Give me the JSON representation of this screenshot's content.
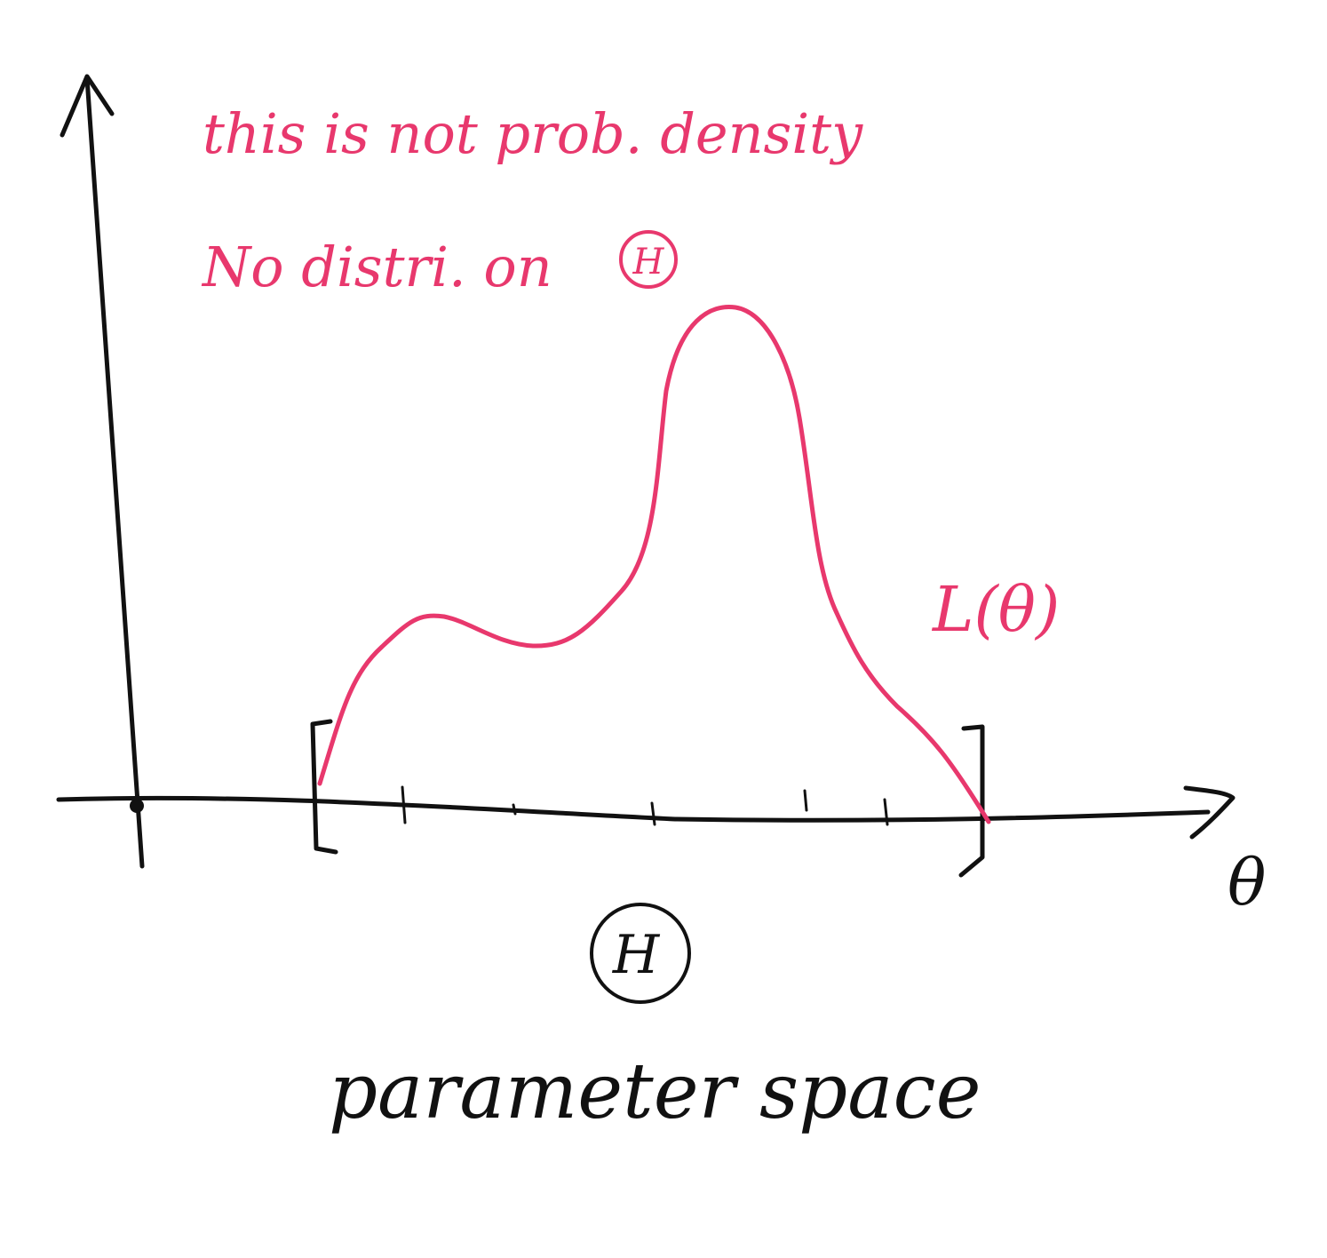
{
  "annotations": {
    "note_line1": "this is not prob. density",
    "note_line2": "No distri. on",
    "note_line2_symbol": "H",
    "curve_label": "L(θ)",
    "x_axis_label": "θ",
    "space_symbol": "H",
    "space_caption": "parameter space"
  },
  "colors": {
    "axes_ink": "#111111",
    "annotation_ink": "#e8386d"
  }
}
